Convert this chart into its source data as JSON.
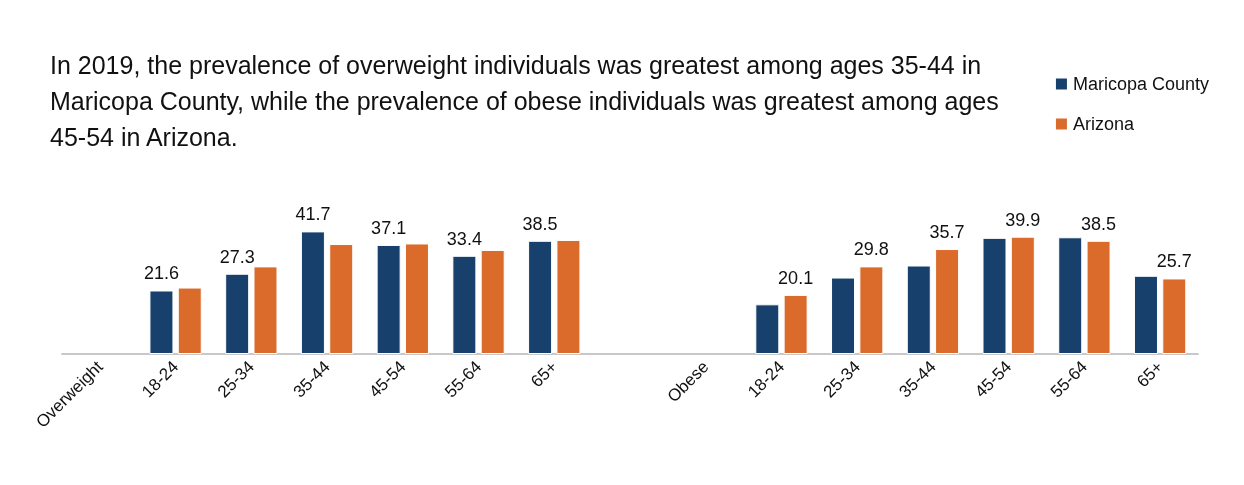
{
  "chart_data": {
    "type": "bar",
    "title": "In 2019, the prevalence of overweight individuals was greatest among ages 35-44 in Maricopa County, while the prevalence of obese individuals was greatest among ages 45-54 in Arizona.",
    "categories": [
      "Overweight",
      "18-24",
      "25-34",
      "35-44",
      "45-54",
      "55-64",
      "65+",
      null,
      "Obese",
      "18-24",
      "25-34",
      "35-44",
      "45-54",
      "55-64",
      "65+"
    ],
    "series": [
      {
        "name": "Maricopa County",
        "color": "#17406d",
        "values": [
          null,
          21.6,
          27.3,
          41.7,
          37.1,
          33.4,
          38.5,
          null,
          null,
          16.9,
          26.0,
          30.1,
          39.5,
          39.7,
          26.6
        ],
        "value_labels": [
          null,
          "21.6",
          "27.3",
          "41.7",
          "37.1",
          "33.4",
          "38.5",
          null,
          null,
          null,
          null,
          null,
          null,
          null,
          null
        ]
      },
      {
        "name": "Arizona",
        "color": "#db6b2b",
        "values": [
          null,
          22.6,
          29.8,
          37.4,
          37.6,
          35.4,
          38.8,
          null,
          null,
          20.1,
          29.8,
          35.7,
          39.9,
          38.5,
          25.7
        ],
        "value_labels": [
          null,
          null,
          null,
          null,
          null,
          null,
          null,
          null,
          null,
          "20.1",
          "29.8",
          "35.7",
          "39.9",
          "38.5",
          "25.7"
        ]
      }
    ],
    "legend": "top right"
  }
}
